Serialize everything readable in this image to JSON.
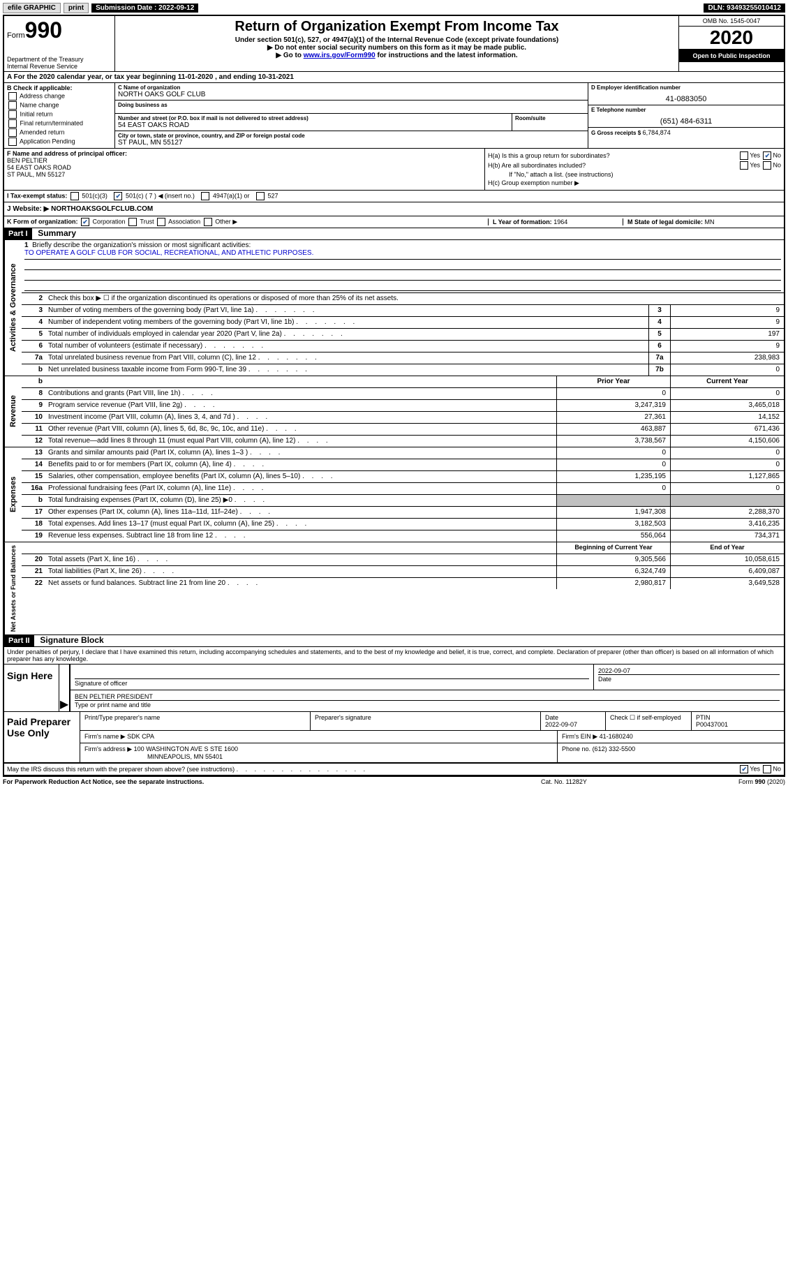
{
  "topbar": {
    "efile": "efile GRAPHIC",
    "print": "print",
    "sub_label": "Submission Date : 2022-09-12",
    "dln": "DLN: 93493255010412"
  },
  "header": {
    "form_prefix": "Form",
    "form_number": "990",
    "dept": "Department of the Treasury\nInternal Revenue Service",
    "title": "Return of Organization Exempt From Income Tax",
    "subtitle": "Under section 501(c), 527, or 4947(a)(1) of the Internal Revenue Code (except private foundations)",
    "inst1": "▶ Do not enter social security numbers on this form as it may be made public.",
    "inst2_pre": "▶ Go to ",
    "inst2_link": "www.irs.gov/Form990",
    "inst2_post": " for instructions and the latest information.",
    "omb": "OMB No. 1545-0047",
    "year": "2020",
    "open": "Open to Public Inspection"
  },
  "rowA": "A For the 2020 calendar year, or tax year beginning 11-01-2020    , and ending 10-31-2021",
  "sectionB": {
    "heading": "B Check if applicable:",
    "address_change": "Address change",
    "name_change": "Name change",
    "initial_return": "Initial return",
    "final_return": "Final return/terminated",
    "amended_return": "Amended return",
    "app_pending": "Application Pending"
  },
  "sectionC": {
    "name_label": "C Name of organization",
    "name": "NORTH OAKS GOLF CLUB",
    "dba_label": "Doing business as",
    "dba": "",
    "street_label": "Number and street (or P.O. box if mail is not delivered to street address)",
    "street": "54 EAST OAKS ROAD",
    "room_label": "Room/suite",
    "room": "",
    "city_label": "City or town, state or province, country, and ZIP or foreign postal code",
    "city": "ST PAUL, MN  55127"
  },
  "colD": {
    "ein_label": "D Employer identification number",
    "ein": "41-0883050",
    "phone_label": "E Telephone number",
    "phone": "(651) 484-6311",
    "gross_label": "G Gross receipts $",
    "gross": "6,784,874"
  },
  "sectionF": {
    "label": "F Name and address of principal officer:",
    "name": "BEN PELTIER",
    "addr1": "54 EAST OAKS ROAD",
    "addr2": "ST PAUL, MN  55127"
  },
  "sectionH": {
    "ha_label": "H(a) Is this a group return for subordinates?",
    "hb_label": "H(b) Are all subordinates included?",
    "hb_note": "If \"No,\" attach a list. (see instructions)",
    "hc_label": "H(c) Group exemption number ▶"
  },
  "rowI": {
    "label": "I  Tax-exempt status:",
    "c3": "501(c)(3)",
    "c": "501(c) ( 7 ) ◀ (insert no.)",
    "a1": "4947(a)(1) or",
    "s527": "527"
  },
  "rowJ": {
    "label": "J  Website: ▶",
    "value": "NORTHOAKSGOLFCLUB.COM"
  },
  "rowK": {
    "label": "K Form of organization:",
    "corp": "Corporation",
    "trust": "Trust",
    "assoc": "Association",
    "other": "Other ▶",
    "l_label": "L Year of formation:",
    "l_val": "1964",
    "m_label": "M State of legal domicile:",
    "m_val": "MN"
  },
  "partI": {
    "header": "Part I",
    "title": "Summary",
    "q1": "Briefly describe the organization's mission or most significant activities:",
    "mission": "TO OPERATE A GOLF CLUB FOR SOCIAL, RECREATIONAL, AND ATHLETIC PURPOSES.",
    "q2": "Check this box ▶ ☐  if the organization discontinued its operations or disposed of more than 25% of its net assets.",
    "lines_gov": [
      {
        "n": "3",
        "d": "Number of voting members of the governing body (Part VI, line 1a)",
        "c": "3",
        "v": "9"
      },
      {
        "n": "4",
        "d": "Number of independent voting members of the governing body (Part VI, line 1b)",
        "c": "4",
        "v": "9"
      },
      {
        "n": "5",
        "d": "Total number of individuals employed in calendar year 2020 (Part V, line 2a)",
        "c": "5",
        "v": "197"
      },
      {
        "n": "6",
        "d": "Total number of volunteers (estimate if necessary)",
        "c": "6",
        "v": "9"
      },
      {
        "n": "7a",
        "d": "Total unrelated business revenue from Part VIII, column (C), line 12",
        "c": "7a",
        "v": "238,983"
      },
      {
        "n": "b",
        "d": "Net unrelated business taxable income from Form 990-T, line 39",
        "c": "7b",
        "v": "0"
      }
    ],
    "col_prior": "Prior Year",
    "col_current": "Current Year",
    "lines_rev": [
      {
        "n": "8",
        "d": "Contributions and grants (Part VIII, line 1h)",
        "p": "0",
        "c": "0"
      },
      {
        "n": "9",
        "d": "Program service revenue (Part VIII, line 2g)",
        "p": "3,247,319",
        "c": "3,465,018"
      },
      {
        "n": "10",
        "d": "Investment income (Part VIII, column (A), lines 3, 4, and 7d )",
        "p": "27,361",
        "c": "14,152"
      },
      {
        "n": "11",
        "d": "Other revenue (Part VIII, column (A), lines 5, 6d, 8c, 9c, 10c, and 11e)",
        "p": "463,887",
        "c": "671,436"
      },
      {
        "n": "12",
        "d": "Total revenue—add lines 8 through 11 (must equal Part VIII, column (A), line 12)",
        "p": "3,738,567",
        "c": "4,150,606"
      }
    ],
    "lines_exp": [
      {
        "n": "13",
        "d": "Grants and similar amounts paid (Part IX, column (A), lines 1–3 )",
        "p": "0",
        "c": "0"
      },
      {
        "n": "14",
        "d": "Benefits paid to or for members (Part IX, column (A), line 4)",
        "p": "0",
        "c": "0"
      },
      {
        "n": "15",
        "d": "Salaries, other compensation, employee benefits (Part IX, column (A), lines 5–10)",
        "p": "1,235,195",
        "c": "1,127,865"
      },
      {
        "n": "16a",
        "d": "Professional fundraising fees (Part IX, column (A), line 11e)",
        "p": "0",
        "c": "0"
      },
      {
        "n": "b",
        "d": "Total fundraising expenses (Part IX, column (D), line 25) ▶0",
        "p": "",
        "c": "",
        "grey": true
      },
      {
        "n": "17",
        "d": "Other expenses (Part IX, column (A), lines 11a–11d, 11f–24e)",
        "p": "1,947,308",
        "c": "2,288,370"
      },
      {
        "n": "18",
        "d": "Total expenses. Add lines 13–17 (must equal Part IX, column (A), line 25)",
        "p": "3,182,503",
        "c": "3,416,235"
      },
      {
        "n": "19",
        "d": "Revenue less expenses. Subtract line 18 from line 12",
        "p": "556,064",
        "c": "734,371"
      }
    ],
    "col_begin": "Beginning of Current Year",
    "col_end": "End of Year",
    "lines_net": [
      {
        "n": "20",
        "d": "Total assets (Part X, line 16)",
        "p": "9,305,566",
        "c": "10,058,615"
      },
      {
        "n": "21",
        "d": "Total liabilities (Part X, line 26)",
        "p": "6,324,749",
        "c": "6,409,087"
      },
      {
        "n": "22",
        "d": "Net assets or fund balances. Subtract line 21 from line 20",
        "p": "2,980,817",
        "c": "3,649,528"
      }
    ],
    "vtab_gov": "Activities & Governance",
    "vtab_rev": "Revenue",
    "vtab_exp": "Expenses",
    "vtab_net": "Net Assets or Fund Balances"
  },
  "partII": {
    "header": "Part II",
    "title": "Signature Block",
    "decl": "Under penalties of perjury, I declare that I have examined this return, including accompanying schedules and statements, and to the best of my knowledge and belief, it is true, correct, and complete. Declaration of preparer (other than officer) is based on all information of which preparer has any knowledge.",
    "sign_here": "Sign Here",
    "sig_officer": "Signature of officer",
    "sig_date_label": "Date",
    "sig_date": "2022-09-07",
    "sig_name": "BEN PELTIER PRESIDENT",
    "sig_name_label": "Type or print name and title",
    "paid": "Paid Preparer Use Only",
    "prep_name_label": "Print/Type preparer's name",
    "prep_sig_label": "Preparer's signature",
    "prep_date_label": "Date",
    "prep_date": "2022-09-07",
    "check_self": "Check ☐ if self-employed",
    "ptin_label": "PTIN",
    "ptin": "P00437001",
    "firm_name_label": "Firm's name    ▶",
    "firm_name": "SDK CPA",
    "firm_ein_label": "Firm's EIN ▶",
    "firm_ein": "41-1680240",
    "firm_addr_label": "Firm's address ▶",
    "firm_addr1": "100 WASHINGTON AVE S STE 1600",
    "firm_addr2": "MINNEAPOLIS, MN  55401",
    "phone_label": "Phone no.",
    "phone": "(612) 332-5500",
    "discuss": "May the IRS discuss this return with the preparer shown above? (see instructions)"
  },
  "footer": {
    "left": "For Paperwork Reduction Act Notice, see the separate instructions.",
    "mid": "Cat. No. 11282Y",
    "right": "Form 990 (2020)"
  }
}
